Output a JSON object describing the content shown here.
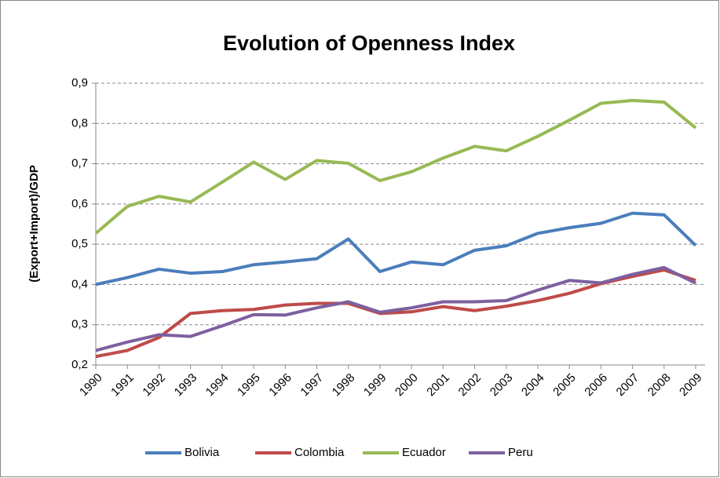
{
  "chart_data": {
    "type": "line",
    "title": "Evolution of Openness Index",
    "y_label": "(Export+Import)/GDP",
    "categories": [
      "1990",
      "1991",
      "1992",
      "1993",
      "1994",
      "1995",
      "1996",
      "1997",
      "1998",
      "1999",
      "2000",
      "2001",
      "2002",
      "2003",
      "2004",
      "2005",
      "2006",
      "2007",
      "2008",
      "2009"
    ],
    "series": [
      {
        "name": "Bolivia",
        "color": "#4a7ebb",
        "values": [
          0.4,
          0.417,
          0.438,
          0.428,
          0.432,
          0.449,
          0.456,
          0.464,
          0.513,
          0.432,
          0.456,
          0.449,
          0.485,
          0.496,
          0.527,
          0.541,
          0.552,
          0.577,
          0.573,
          0.497
        ]
      },
      {
        "name": "Colombia",
        "color": "#be4b48",
        "values": [
          0.221,
          0.236,
          0.268,
          0.328,
          0.335,
          0.338,
          0.349,
          0.353,
          0.353,
          0.328,
          0.332,
          0.345,
          0.335,
          0.346,
          0.36,
          0.378,
          0.402,
          0.42,
          0.436,
          0.41
        ]
      },
      {
        "name": "Ecuador",
        "color": "#98b954",
        "values": [
          0.527,
          0.594,
          0.619,
          0.605,
          0.654,
          0.704,
          0.661,
          0.708,
          0.701,
          0.658,
          0.68,
          0.714,
          0.743,
          0.732,
          0.768,
          0.808,
          0.85,
          0.857,
          0.853,
          0.789
        ]
      },
      {
        "name": "Peru",
        "color": "#7d60a0",
        "values": [
          0.236,
          0.257,
          0.275,
          0.271,
          0.297,
          0.325,
          0.324,
          0.342,
          0.357,
          0.331,
          0.342,
          0.357,
          0.357,
          0.36,
          0.386,
          0.41,
          0.404,
          0.425,
          0.442,
          0.403
        ]
      }
    ],
    "ylim": [
      0.2,
      0.9
    ],
    "yticks": [
      {
        "value": 0.2,
        "label": "0,2"
      },
      {
        "value": 0.3,
        "label": "0,3"
      },
      {
        "value": 0.4,
        "label": "0,4"
      },
      {
        "value": 0.5,
        "label": "0,5"
      },
      {
        "value": 0.6,
        "label": "0,6"
      },
      {
        "value": 0.7,
        "label": "0,7"
      },
      {
        "value": 0.8,
        "label": "0,8"
      },
      {
        "value": 0.9,
        "label": "0,9"
      }
    ],
    "grid": true,
    "legend": "bottom"
  }
}
